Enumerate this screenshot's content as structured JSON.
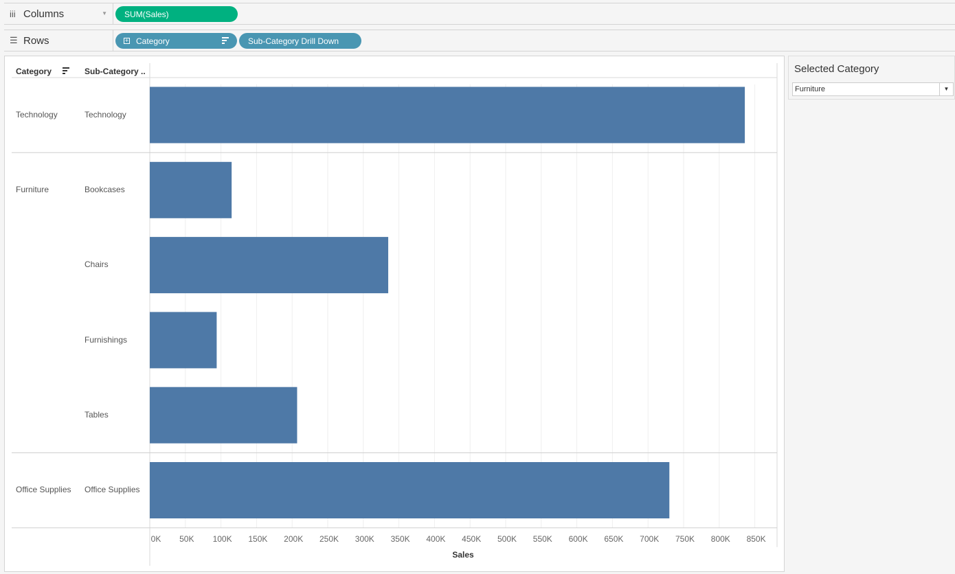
{
  "shelves": {
    "columns": {
      "label": "Columns",
      "pills": [
        "SUM(Sales)"
      ]
    },
    "rows": {
      "label": "Rows",
      "pills": [
        "Category",
        "Sub-Category Drill Down"
      ]
    }
  },
  "table": {
    "headers": {
      "category": "Category",
      "subcategory": "Sub-Category .."
    }
  },
  "chart_data": {
    "type": "bar",
    "orientation": "horizontal",
    "rows": [
      {
        "category": "Technology",
        "subcategory": "Technology",
        "value": 836000
      },
      {
        "category": "Furniture",
        "subcategory": "Bookcases",
        "value": 115000
      },
      {
        "category": "",
        "subcategory": "Chairs",
        "value": 335000
      },
      {
        "category": "",
        "subcategory": "Furnishings",
        "value": 94000
      },
      {
        "category": "",
        "subcategory": "Tables",
        "value": 207000
      },
      {
        "category": "Office Supplies",
        "subcategory": "Office Supplies",
        "value": 730000
      }
    ],
    "ticks": [
      "0K",
      "50K",
      "100K",
      "150K",
      "200K",
      "250K",
      "300K",
      "350K",
      "400K",
      "450K",
      "500K",
      "550K",
      "600K",
      "650K",
      "700K",
      "750K",
      "800K",
      "850K"
    ],
    "xlabel": "Sales",
    "xlim": [
      0,
      880000
    ],
    "grid": true,
    "color": "#4e79a7"
  },
  "filter": {
    "title": "Selected Category",
    "value": "Furniture"
  },
  "colors": {
    "pill_measure": "#00b180",
    "pill_dimension": "#4996b2",
    "bar": "#4e79a7"
  }
}
